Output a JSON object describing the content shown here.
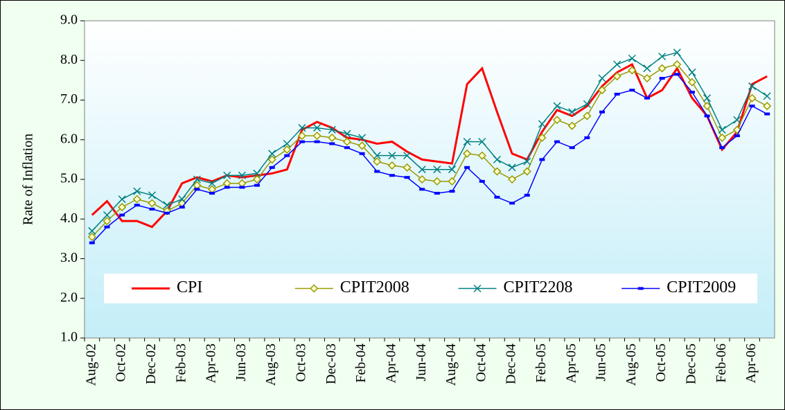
{
  "chart_data": {
    "type": "line",
    "y_label": "Rate of Inflation",
    "categories": [
      "Aug-02",
      null,
      "Oct-02",
      null,
      "Dec-02",
      null,
      "Feb-03",
      null,
      "Apr-03",
      null,
      "Jun-03",
      null,
      "Aug-03",
      null,
      "Oct-03",
      null,
      "Dec-03",
      null,
      "Feb-04",
      null,
      "Apr-04",
      null,
      "Jun-04",
      null,
      "Aug-04",
      null,
      "Oct-04",
      null,
      "Dec-04",
      null,
      "Feb-05",
      null,
      "Apr-05",
      null,
      "Jun-05",
      null,
      "Aug-05",
      null,
      "Oct-05",
      null,
      "Dec-05",
      null,
      "Feb-06",
      null,
      "Apr-06",
      null
    ],
    "series": [
      {
        "name": "CPI",
        "color": "#ff0000",
        "marker": "none",
        "line_width": 3,
        "values": [
          4.1,
          4.45,
          3.95,
          3.95,
          3.8,
          4.2,
          4.9,
          5.05,
          4.95,
          5.1,
          5.05,
          5.1,
          5.15,
          5.25,
          6.25,
          6.45,
          6.3,
          6.05,
          6.0,
          5.9,
          5.95,
          5.7,
          5.5,
          5.45,
          5.4,
          7.4,
          7.8,
          6.7,
          5.65,
          5.5,
          6.2,
          6.75,
          6.6,
          6.85,
          7.35,
          7.7,
          7.9,
          7.05,
          7.25,
          7.8,
          7.05,
          6.6,
          5.75,
          6.2,
          7.4,
          7.6
        ]
      },
      {
        "name": "CPIT2008",
        "color": "#999900",
        "marker": "diamond",
        "line_width": 1.5,
        "values": [
          3.55,
          3.95,
          4.3,
          4.5,
          4.4,
          4.2,
          4.4,
          4.85,
          4.75,
          4.9,
          4.9,
          5.0,
          5.5,
          5.75,
          6.1,
          6.1,
          6.05,
          5.95,
          5.85,
          5.45,
          5.35,
          5.3,
          5.0,
          4.95,
          4.95,
          5.65,
          5.6,
          5.2,
          5.0,
          5.2,
          6.05,
          6.5,
          6.35,
          6.6,
          7.25,
          7.6,
          7.75,
          7.55,
          7.8,
          7.9,
          7.45,
          6.85,
          6.05,
          6.25,
          7.05,
          6.85
        ]
      },
      {
        "name": "CPIT2208",
        "color": "#008080",
        "marker": "x",
        "line_width": 1.5,
        "values": [
          3.7,
          4.1,
          4.5,
          4.7,
          4.6,
          4.35,
          4.5,
          5.0,
          4.9,
          5.1,
          5.1,
          5.15,
          5.65,
          5.9,
          6.3,
          6.3,
          6.25,
          6.15,
          6.05,
          5.6,
          5.6,
          5.6,
          5.25,
          5.25,
          5.25,
          5.95,
          5.95,
          5.5,
          5.3,
          5.45,
          6.4,
          6.85,
          6.7,
          6.9,
          7.55,
          7.9,
          8.05,
          7.8,
          8.1,
          8.2,
          7.7,
          7.05,
          6.25,
          6.5,
          7.35,
          7.1
        ]
      },
      {
        "name": "CPIT2009",
        "color": "#0000ff",
        "marker": "dash",
        "line_width": 1.5,
        "values": [
          3.4,
          3.8,
          4.1,
          4.35,
          4.25,
          4.15,
          4.3,
          4.75,
          4.65,
          4.8,
          4.8,
          4.85,
          5.3,
          5.6,
          5.95,
          5.95,
          5.9,
          5.8,
          5.65,
          5.2,
          5.1,
          5.05,
          4.75,
          4.65,
          4.7,
          5.3,
          4.95,
          4.55,
          4.4,
          4.6,
          5.5,
          5.95,
          5.8,
          6.05,
          6.7,
          7.15,
          7.25,
          7.05,
          7.55,
          7.65,
          7.2,
          6.6,
          5.8,
          6.1,
          6.85,
          6.65
        ]
      }
    ],
    "ylim": [
      1,
      9
    ],
    "yticks": [
      {
        "value": 1,
        "label": "1.0"
      },
      {
        "value": 2,
        "label": "2.0"
      },
      {
        "value": 3,
        "label": "3.0"
      },
      {
        "value": 4,
        "label": "4.0"
      },
      {
        "value": 5,
        "label": "5.0"
      },
      {
        "value": 6,
        "label": "6.0"
      },
      {
        "value": 7,
        "label": "7.0"
      },
      {
        "value": 8,
        "label": "8.0"
      },
      {
        "value": 9,
        "label": "9.0"
      }
    ],
    "legend": "lower center"
  }
}
